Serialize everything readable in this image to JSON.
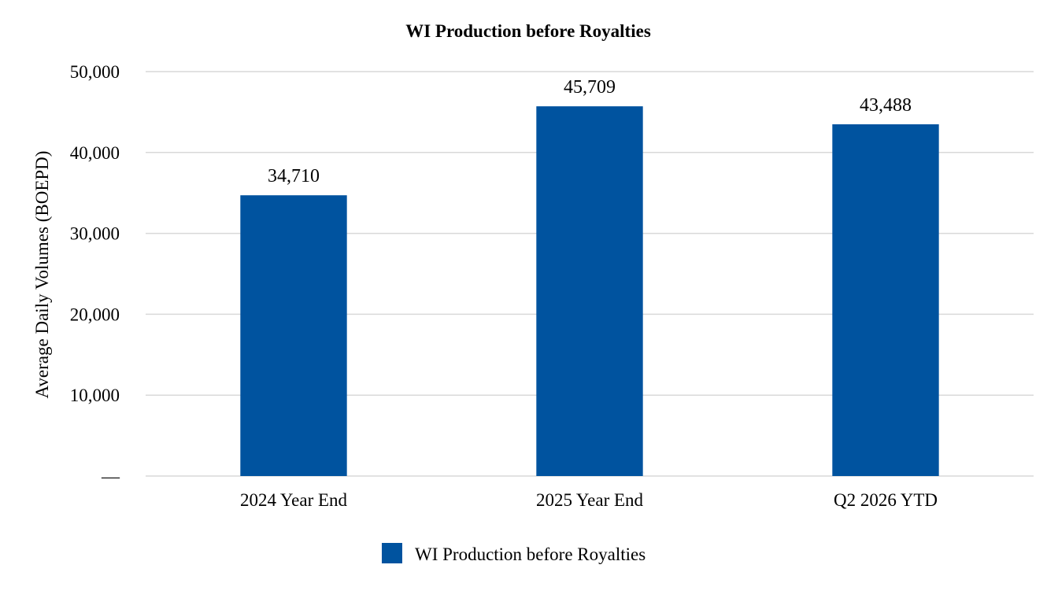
{
  "chart_data": {
    "type": "bar",
    "title": "WI Production before Royalties",
    "ylabel": "Average Daily Volumes (BOEPD)",
    "xlabel": "",
    "categories": [
      "2024 Year End",
      "2025 Year End",
      "Q2 2026 YTD"
    ],
    "series": [
      {
        "name": "WI Production before Royalties",
        "values": [
          34710,
          45709,
          43488
        ],
        "data_labels": [
          "34,710",
          "45,709",
          "43,488"
        ],
        "color": "#00539f"
      }
    ],
    "ylim": [
      0,
      50000
    ],
    "y_ticks": [
      {
        "value": 0,
        "label": "—"
      },
      {
        "value": 10000,
        "label": "10,000"
      },
      {
        "value": 20000,
        "label": "20,000"
      },
      {
        "value": 30000,
        "label": "30,000"
      },
      {
        "value": 40000,
        "label": "40,000"
      },
      {
        "value": 50000,
        "label": "50,000"
      }
    ],
    "grid": true,
    "legend_position": "bottom"
  }
}
